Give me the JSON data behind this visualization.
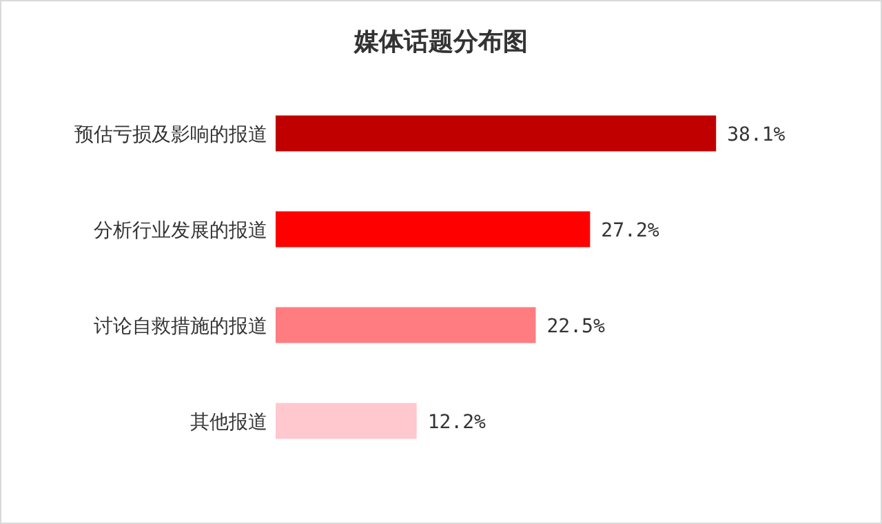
{
  "chart_data": {
    "type": "bar",
    "orientation": "horizontal",
    "title": "媒体话题分布图",
    "categories": [
      "预估亏损及影响的报道",
      "分析行业发展的报道",
      "讨论自救措施的报道",
      "其他报道"
    ],
    "values": [
      38.1,
      27.2,
      22.5,
      12.2
    ],
    "colors": [
      "#c00000",
      "#ff0000",
      "#ff7c80",
      "#ffc7ce"
    ],
    "value_labels": [
      "38.1%",
      "27.2%",
      "22.5%",
      "12.2%"
    ]
  }
}
